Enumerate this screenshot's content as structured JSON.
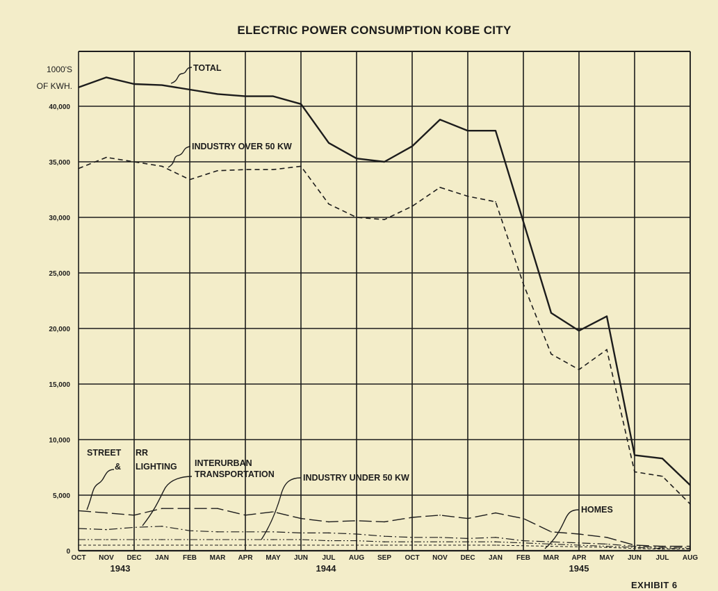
{
  "title": "ELECTRIC POWER CONSUMPTION KOBE CITY",
  "exhibit": "EXHIBIT 6",
  "chart_data": {
    "type": "line",
    "title": "ELECTRIC POWER CONSUMPTION KOBE CITY",
    "ylabel_lines": [
      "1000'S",
      "OF KWH."
    ],
    "xlabel": "",
    "categories": [
      "OCT",
      "NOV",
      "DEC",
      "JAN",
      "FEB",
      "MAR",
      "APR",
      "MAY",
      "JUN",
      "JUL",
      "AUG",
      "SEP",
      "OCT",
      "NOV",
      "DEC",
      "JAN",
      "FEB",
      "MAR",
      "APR",
      "MAY",
      "JUN",
      "JUL",
      "AUG"
    ],
    "year_labels": [
      {
        "text": "1943",
        "index": 1.5
      },
      {
        "text": "1944",
        "index": 8.9
      },
      {
        "text": "1945",
        "index": 18
      }
    ],
    "ylim": [
      0,
      44500
    ],
    "yticks": [
      0,
      5000,
      10000,
      15000,
      20000,
      25000,
      30000,
      35000,
      40000
    ],
    "ytick_labels": [
      "0",
      "5,000",
      "10,000",
      "15,000",
      "20,000",
      "25,000",
      "30,000",
      "35,000",
      "40,000"
    ],
    "grid": true,
    "series": [
      {
        "name": "TOTAL",
        "style": "solid",
        "values": [
          41700,
          42600,
          42000,
          41900,
          41500,
          41100,
          40900,
          40900,
          40200,
          36700,
          35300,
          35000,
          36400,
          38800,
          37800,
          37800,
          29600,
          21400,
          19800,
          21100,
          8600,
          8300,
          5900
        ]
      },
      {
        "name": "INDUSTRY OVER 50 KW",
        "style": "dashed",
        "values": [
          34400,
          35400,
          35000,
          34600,
          33400,
          34200,
          34300,
          34300,
          34600,
          31200,
          30000,
          29800,
          31000,
          32700,
          31900,
          31400,
          24000,
          17700,
          16300,
          18100,
          7100,
          6700,
          4200
        ]
      },
      {
        "name": "STREET RR & LIGHTING",
        "style": "longdash",
        "values": [
          3600,
          3400,
          3200,
          3800,
          3800,
          3800,
          3200,
          3500,
          2900,
          2600,
          2700,
          2600,
          3000,
          3200,
          2900,
          3400,
          2900,
          1700,
          1500,
          1200,
          500,
          400,
          400
        ]
      },
      {
        "name": "INTERURBAN TRANSPORTATION",
        "style": "dashdot",
        "values": [
          2000,
          1900,
          2100,
          2200,
          1800,
          1700,
          1700,
          1700,
          1600,
          1600,
          1500,
          1300,
          1200,
          1200,
          1100,
          1200,
          900,
          800,
          700,
          600,
          400,
          300,
          300
        ]
      },
      {
        "name": "INDUSTRY UNDER 50 KW",
        "style": "dashdotdot",
        "values": [
          1000,
          1000,
          1000,
          1000,
          1000,
          1000,
          1000,
          1000,
          1000,
          900,
          900,
          800,
          800,
          800,
          800,
          800,
          700,
          600,
          500,
          400,
          300,
          200,
          200
        ]
      },
      {
        "name": "HOMES",
        "style": "finedash",
        "values": [
          500,
          500,
          500,
          500,
          500,
          500,
          500,
          500,
          500,
          500,
          500,
          500,
          500,
          500,
          500,
          500,
          450,
          400,
          350,
          300,
          200,
          150,
          150
        ]
      }
    ],
    "annotations": [
      {
        "lines": [
          "TOTAL"
        ],
        "series": "TOTAL"
      },
      {
        "lines": [
          "INDUSTRY OVER 50 KW"
        ],
        "series": "INDUSTRY OVER 50 KW"
      },
      {
        "lines": [
          "STREET",
          "&"
        ],
        "series": "STREET RR & LIGHTING"
      },
      {
        "lines": [
          "RR",
          "LIGHTING"
        ],
        "series": "STREET RR & LIGHTING"
      },
      {
        "lines": [
          "INTERURBAN",
          "TRANSPORTATION"
        ],
        "series": "INTERURBAN TRANSPORTATION"
      },
      {
        "lines": [
          "INDUSTRY UNDER 50 KW"
        ],
        "series": "INDUSTRY UNDER 50 KW"
      },
      {
        "lines": [
          "HOMES"
        ],
        "series": "HOMES"
      }
    ]
  }
}
